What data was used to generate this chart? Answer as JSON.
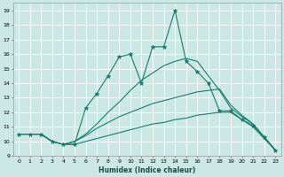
{
  "xlabel": "Humidex (Indice chaleur)",
  "bg_color": "#cce8e4",
  "line_color": "#1a7a6e",
  "grid_color": "#ffffff",
  "xlim": [
    -0.5,
    23.5
  ],
  "ylim": [
    9,
    19.5
  ],
  "yticks": [
    9,
    10,
    11,
    12,
    13,
    14,
    15,
    16,
    17,
    18,
    19
  ],
  "xticks": [
    0,
    1,
    2,
    3,
    4,
    5,
    6,
    7,
    8,
    9,
    10,
    11,
    12,
    13,
    14,
    15,
    16,
    17,
    18,
    19,
    20,
    21,
    22,
    23
  ],
  "series": [
    {
      "y": [
        10.5,
        10.5,
        10.5,
        10.0,
        9.8,
        9.8,
        10.0,
        10.2,
        10.4,
        10.6,
        10.8,
        11.0,
        11.2,
        11.3,
        11.5,
        11.6,
        11.8,
        11.9,
        12.0,
        12.0,
        11.5,
        11.0,
        10.2,
        9.4
      ],
      "marker": false
    },
    {
      "y": [
        10.5,
        10.5,
        10.5,
        10.0,
        9.8,
        10.0,
        10.4,
        10.9,
        11.3,
        11.7,
        12.0,
        12.3,
        12.6,
        12.8,
        13.0,
        13.2,
        13.4,
        13.5,
        13.6,
        12.5,
        11.8,
        11.2,
        10.3,
        9.4
      ],
      "marker": false
    },
    {
      "y": [
        10.5,
        10.5,
        10.5,
        10.0,
        9.8,
        10.0,
        10.5,
        11.2,
        12.0,
        12.7,
        13.5,
        14.2,
        14.7,
        15.2,
        15.5,
        15.7,
        15.5,
        14.5,
        13.5,
        12.3,
        11.7,
        11.2,
        10.3,
        9.4
      ],
      "marker": false
    },
    {
      "y": [
        10.5,
        10.5,
        10.5,
        10.0,
        9.8,
        9.8,
        12.3,
        13.3,
        14.5,
        15.8,
        16.0,
        14.0,
        16.5,
        16.5,
        19.0,
        15.5,
        14.8,
        14.0,
        12.1,
        12.1,
        11.5,
        11.1,
        10.3,
        9.4
      ],
      "marker": true
    }
  ]
}
